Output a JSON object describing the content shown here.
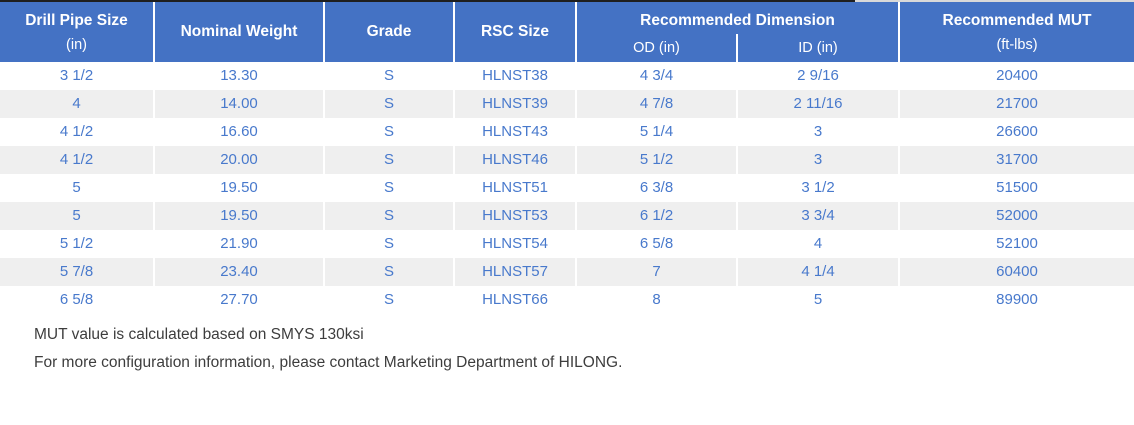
{
  "table": {
    "header": {
      "drill_pipe_size": {
        "line1": "Drill Pipe Size",
        "line2": "(in)"
      },
      "nominal_weight": "Nominal Weight",
      "grade": "Grade",
      "rsc_size": "RSC Size",
      "recommended_dimension": {
        "title": "Recommended Dimension",
        "sub_od": "OD (in)",
        "sub_id": "ID (in)"
      },
      "recommended_mut": {
        "line1": "Recommended MUT",
        "line2": "(ft-lbs)"
      }
    },
    "rows": [
      {
        "drill_pipe_size": "3 1/2",
        "nominal_weight": "13.30",
        "grade": "S",
        "rsc_size": "HLNST38",
        "od": "4 3/4",
        "id": "2 9/16",
        "mut": "20400"
      },
      {
        "drill_pipe_size": "4",
        "nominal_weight": "14.00",
        "grade": "S",
        "rsc_size": "HLNST39",
        "od": "4 7/8",
        "id": "2 11/16",
        "mut": "21700"
      },
      {
        "drill_pipe_size": "4 1/2",
        "nominal_weight": "16.60",
        "grade": "S",
        "rsc_size": "HLNST43",
        "od": "5 1/4",
        "id": "3",
        "mut": "26600"
      },
      {
        "drill_pipe_size": "4 1/2",
        "nominal_weight": "20.00",
        "grade": "S",
        "rsc_size": "HLNST46",
        "od": "5 1/2",
        "id": "3",
        "mut": "31700"
      },
      {
        "drill_pipe_size": "5",
        "nominal_weight": "19.50",
        "grade": "S",
        "rsc_size": "HLNST51",
        "od": "6 3/8",
        "id": "3 1/2",
        "mut": "51500"
      },
      {
        "drill_pipe_size": "5",
        "nominal_weight": "19.50",
        "grade": "S",
        "rsc_size": "HLNST53",
        "od": "6 1/2",
        "id": "3 3/4",
        "mut": "52000"
      },
      {
        "drill_pipe_size": "5 1/2",
        "nominal_weight": "21.90",
        "grade": "S",
        "rsc_size": "HLNST54",
        "od": "6 5/8",
        "id": "4",
        "mut": "52100"
      },
      {
        "drill_pipe_size": "5 7/8",
        "nominal_weight": "23.40",
        "grade": "S",
        "rsc_size": "HLNST57",
        "od": "7",
        "id": "4 1/4",
        "mut": "60400"
      },
      {
        "drill_pipe_size": "6 5/8",
        "nominal_weight": "27.70",
        "grade": "S",
        "rsc_size": "HLNST66",
        "od": "8",
        "id": "5",
        "mut": "89900"
      }
    ]
  },
  "notes": {
    "line1": "MUT value is calculated based on SMYS 130ksi",
    "line2": "For more configuration information, please contact Marketing Department of HILONG."
  },
  "colors": {
    "page_bg": "#FFFFFF",
    "header_bg": "#4472C4",
    "header_text": "#FFFFFF",
    "body_text": "#4879CC",
    "row_bg": "#FFFFFF",
    "row_alt_bg": "#EFEFEF",
    "top_line_dark": "#1F1F1F",
    "top_line_light": "#D9D9D9",
    "note_text": "#3D3D3D"
  }
}
